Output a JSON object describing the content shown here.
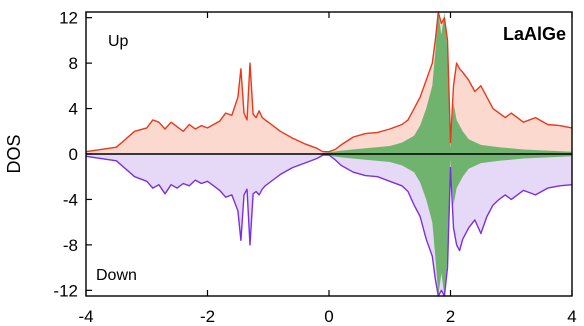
{
  "chart_data": {
    "type": "area",
    "title": "LaAlGe",
    "xlabel": "",
    "ylabel": "DOS",
    "xlim": [
      -4,
      4
    ],
    "ylim": [
      -12.5,
      12.5
    ],
    "x_ticks": [
      -4,
      -2,
      0,
      2,
      4
    ],
    "x_tick_labels": [
      "-4",
      "-2",
      "0",
      "2",
      "4"
    ],
    "y_ticks": [
      12,
      8,
      4,
      0,
      -4,
      -8,
      -12
    ],
    "y_tick_labels": [
      "12",
      "8",
      "4",
      "0",
      "-4",
      "-8",
      "-12"
    ],
    "grid": false,
    "annotations": [
      {
        "text": "Up",
        "position": "top-left"
      },
      {
        "text": "Down",
        "position": "bottom-left"
      }
    ],
    "colors": {
      "up_line": "#e8391d",
      "up_fill": "#fbd9cf",
      "down_line": "#7b2fe0",
      "down_fill": "#e6d9f7",
      "projected_fill": "#6fb36f"
    },
    "series": [
      {
        "role": "spin-up total",
        "x": [
          -4.0,
          -3.5,
          -3.2,
          -3.0,
          -2.9,
          -2.8,
          -2.7,
          -2.6,
          -2.5,
          -2.4,
          -2.3,
          -2.2,
          -2.1,
          -2.0,
          -1.9,
          -1.8,
          -1.7,
          -1.6,
          -1.5,
          -1.45,
          -1.4,
          -1.35,
          -1.3,
          -1.25,
          -1.2,
          -1.15,
          -1.1,
          -1.05,
          -1.0,
          -0.9,
          -0.8,
          -0.6,
          -0.4,
          -0.2,
          -0.1,
          0.0,
          0.1,
          0.2,
          0.4,
          0.6,
          0.8,
          1.0,
          1.2,
          1.3,
          1.4,
          1.5,
          1.6,
          1.7,
          1.75,
          1.8,
          1.85,
          1.9,
          1.95,
          2.0,
          2.05,
          2.1,
          2.15,
          2.2,
          2.3,
          2.4,
          2.5,
          2.6,
          2.7,
          2.8,
          2.9,
          3.0,
          3.2,
          3.4,
          3.6,
          3.8,
          4.0
        ],
        "y": [
          0.2,
          0.6,
          2.0,
          2.3,
          3.0,
          2.8,
          2.2,
          2.8,
          2.4,
          2.0,
          2.6,
          2.2,
          2.5,
          2.3,
          2.6,
          2.9,
          3.6,
          3.4,
          5.0,
          7.5,
          3.6,
          3.0,
          8.0,
          3.5,
          3.2,
          3.8,
          3.2,
          3.0,
          2.8,
          2.4,
          2.0,
          1.4,
          0.9,
          0.5,
          0.2,
          0.2,
          0.4,
          0.8,
          1.5,
          1.8,
          1.9,
          2.2,
          2.6,
          3.0,
          4.0,
          5.0,
          6.5,
          8.0,
          10.0,
          12.5,
          11.5,
          12.0,
          10.0,
          1.0,
          6.0,
          8.0,
          7.5,
          7.2,
          6.5,
          5.5,
          6.0,
          5.0,
          4.0,
          3.6,
          3.2,
          3.6,
          2.8,
          3.2,
          2.6,
          2.5,
          2.3
        ]
      },
      {
        "role": "spin-down total",
        "x": [
          -4.0,
          -3.5,
          -3.2,
          -3.0,
          -2.9,
          -2.8,
          -2.7,
          -2.6,
          -2.5,
          -2.4,
          -2.3,
          -2.2,
          -2.1,
          -2.0,
          -1.9,
          -1.8,
          -1.7,
          -1.6,
          -1.5,
          -1.45,
          -1.4,
          -1.35,
          -1.3,
          -1.25,
          -1.2,
          -1.15,
          -1.1,
          -1.05,
          -1.0,
          -0.9,
          -0.8,
          -0.6,
          -0.4,
          -0.2,
          -0.1,
          0.0,
          0.1,
          0.2,
          0.4,
          0.6,
          0.8,
          1.0,
          1.2,
          1.3,
          1.4,
          1.5,
          1.6,
          1.7,
          1.75,
          1.8,
          1.85,
          1.9,
          1.95,
          2.0,
          2.05,
          2.1,
          2.15,
          2.2,
          2.3,
          2.4,
          2.5,
          2.6,
          2.7,
          2.8,
          2.9,
          3.0,
          3.2,
          3.4,
          3.6,
          3.8,
          4.0
        ],
        "y": [
          -0.2,
          -0.6,
          -2.0,
          -2.4,
          -3.0,
          -2.7,
          -3.5,
          -2.7,
          -3.0,
          -2.6,
          -2.8,
          -2.3,
          -2.6,
          -2.4,
          -2.8,
          -3.2,
          -3.8,
          -3.6,
          -5.0,
          -7.6,
          -3.6,
          -3.1,
          -8.0,
          -3.5,
          -3.3,
          -3.6,
          -3.1,
          -2.8,
          -2.6,
          -2.2,
          -1.8,
          -1.2,
          -0.8,
          -0.4,
          -0.1,
          -0.1,
          -0.5,
          -1.0,
          -1.6,
          -1.9,
          -2.0,
          -2.4,
          -2.8,
          -3.3,
          -4.5,
          -5.5,
          -7.5,
          -9.0,
          -11.0,
          -12.5,
          -12.0,
          -12.5,
          -10.0,
          -1.2,
          -6.5,
          -8.0,
          -8.5,
          -7.5,
          -6.5,
          -5.8,
          -7.0,
          -5.5,
          -4.5,
          -4.0,
          -3.6,
          -4.0,
          -3.2,
          -3.6,
          -3.0,
          -2.8,
          -2.7
        ]
      },
      {
        "role": "projected (green)",
        "x": [
          -0.2,
          0.2,
          0.6,
          1.0,
          1.2,
          1.4,
          1.5,
          1.6,
          1.7,
          1.75,
          1.8,
          1.85,
          1.9,
          1.95,
          2.0,
          2.05,
          2.1,
          2.2,
          2.3,
          2.5,
          2.8,
          3.2,
          3.6,
          4.0
        ],
        "y": [
          0.0,
          0.3,
          0.5,
          0.7,
          1.0,
          1.6,
          2.5,
          4.0,
          6.0,
          9.0,
          12.5,
          10.5,
          12.5,
          9.0,
          0.5,
          4.5,
          3.0,
          2.0,
          1.3,
          0.8,
          0.6,
          0.4,
          0.3,
          0.2
        ]
      }
    ]
  }
}
